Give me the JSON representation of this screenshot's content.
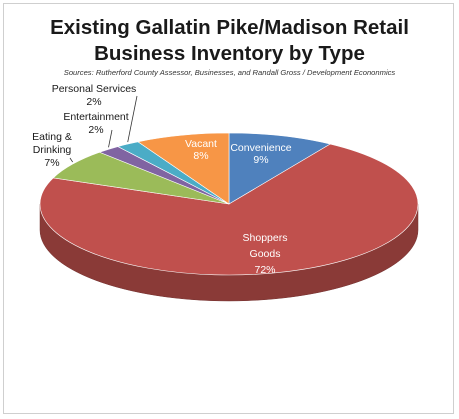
{
  "chart_data": {
    "type": "pie",
    "title_line1": "Existing Gallatin Pike/Madison Retail",
    "title_line2": "Business Inventory by Type",
    "subtitle": "Sources: Rutherford County Assessor, Businesses, and Randall Gross / Development Econonmics",
    "slices": [
      {
        "label": "Convenience",
        "pct_label": "9%",
        "value": 9,
        "color": "#4f81bd"
      },
      {
        "label": "Shoppers Goods",
        "pct_label": "72%",
        "value": 72,
        "color": "#c0504d"
      },
      {
        "label": "Eating & Drinking",
        "pct_label": "7%",
        "value": 7,
        "color": "#9bbb59"
      },
      {
        "label": "Entertainment",
        "pct_label": "2%",
        "value": 2,
        "color": "#8064a2"
      },
      {
        "label": "Personal Services",
        "pct_label": "2%",
        "value": 2,
        "color": "#4bacc6"
      },
      {
        "label": "Vacant",
        "pct_label": "8%",
        "value": 8,
        "color": "#f79646"
      }
    ]
  }
}
